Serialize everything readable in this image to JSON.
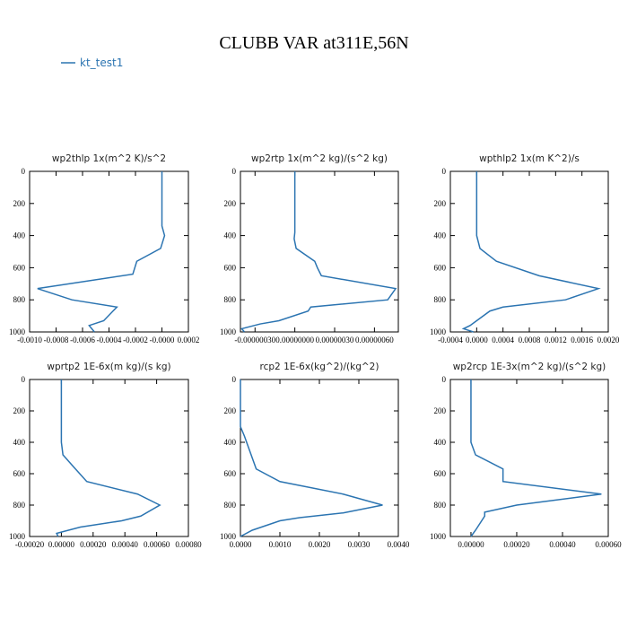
{
  "title": "CLUBB VAR at311E,56N",
  "legend": {
    "label": "kt_test1",
    "color": "#2b74b1"
  },
  "chart_data": [
    {
      "type": "line",
      "title": "wp2thlp   1x(m^2 K)/s^2",
      "xlim": [
        -0.001,
        0.0002
      ],
      "xticks": [
        {
          "value": -0.001,
          "label": "-0.0010"
        },
        {
          "value": -0.0008,
          "label": "-0.0008"
        },
        {
          "value": -0.0006,
          "label": "-0.0006"
        },
        {
          "value": -0.0004,
          "label": "-0.0004"
        },
        {
          "value": -0.0002,
          "label": "-0.0002"
        },
        {
          "value": 0,
          "label": "-0.0000"
        },
        {
          "value": 0.0002,
          "label": "0.0002"
        }
      ],
      "ylim": [
        1000,
        0
      ],
      "yticks": [
        0,
        200,
        400,
        600,
        800,
        1000
      ],
      "series": [
        {
          "color": "#2b74b1",
          "x": [
            0,
            0,
            2e-05,
            -1e-05,
            -0.00019,
            -0.00022,
            -0.00094,
            -0.00068,
            -0.00034,
            -0.00037,
            -0.00044,
            -0.00055,
            -0.00051
          ],
          "y": [
            0,
            340,
            400,
            480,
            560,
            640,
            730,
            800,
            845,
            870,
            930,
            960,
            1000
          ]
        }
      ]
    },
    {
      "type": "line",
      "title": "wp2rtp   1x(m^2 kg)/(s^2 kg)",
      "xlim": [
        -4.1e-07,
        7.8e-07
      ],
      "xticks": [
        {
          "value": -3e-07,
          "label": "-0.00000030"
        },
        {
          "value": 0,
          "label": "0.00000000"
        },
        {
          "value": 3e-07,
          "label": "0.00000030"
        },
        {
          "value": 6e-07,
          "label": "0.00000060"
        }
      ],
      "ylim": [
        1000,
        0
      ],
      "yticks": [
        0,
        200,
        400,
        600,
        800,
        1000
      ],
      "series": [
        {
          "color": "#2b74b1",
          "x": [
            0,
            0,
            -5e-09,
            1e-08,
            1.5e-07,
            1.7e-07,
            2e-07,
            7.6e-07,
            7e-07,
            1.2e-07,
            1e-07,
            -1.2e-07,
            -2.6e-07,
            -4e-07,
            -3.8e-07
          ],
          "y": [
            0,
            380,
            420,
            480,
            560,
            600,
            650,
            730,
            800,
            845,
            870,
            930,
            950,
            980,
            1000
          ]
        }
      ]
    },
    {
      "type": "line",
      "title": "wpthlp2   1x(m K^2)/s",
      "xlim": [
        -0.0004,
        0.002
      ],
      "xticks": [
        {
          "value": -0.0004,
          "label": "-0.0004"
        },
        {
          "value": 0,
          "label": "0.0000"
        },
        {
          "value": 0.0004,
          "label": "0.0004"
        },
        {
          "value": 0.0008,
          "label": "0.0008"
        },
        {
          "value": 0.0012,
          "label": "0.0012"
        },
        {
          "value": 0.0016,
          "label": "0.0016"
        },
        {
          "value": 0.002,
          "label": "0.0020"
        }
      ],
      "ylim": [
        1000,
        0
      ],
      "yticks": [
        0,
        200,
        400,
        600,
        800,
        1000
      ],
      "series": [
        {
          "color": "#2b74b1",
          "x": [
            0,
            0,
            5e-05,
            0.0003,
            0.00095,
            0.00185,
            0.00135,
            0.0004,
            0.0002,
            -0.0001,
            -0.0002,
            -5e-05
          ],
          "y": [
            0,
            400,
            480,
            560,
            650,
            730,
            800,
            845,
            870,
            960,
            980,
            1000
          ]
        }
      ]
    },
    {
      "type": "line",
      "title": "wprtp2   1E-6x(m kg)/(s kg)",
      "xlim": [
        -0.0002,
        0.0008
      ],
      "xticks": [
        {
          "value": -0.0002,
          "label": "-0.00020"
        },
        {
          "value": 0,
          "label": "0.00000"
        },
        {
          "value": 0.0002,
          "label": "0.00020"
        },
        {
          "value": 0.0004,
          "label": "0.00040"
        },
        {
          "value": 0.0006,
          "label": "0.00060"
        },
        {
          "value": 0.0008,
          "label": "0.00080"
        }
      ],
      "ylim": [
        1000,
        0
      ],
      "yticks": [
        0,
        200,
        400,
        600,
        800,
        1000
      ],
      "series": [
        {
          "color": "#2b74b1",
          "x": [
            0,
            0,
            1e-05,
            8e-05,
            0.00016,
            0.00048,
            0.00062,
            0.0005,
            0.00038,
            0.00012,
            -3e-05,
            -2e-05
          ],
          "y": [
            0,
            400,
            480,
            560,
            650,
            730,
            800,
            870,
            900,
            940,
            980,
            1000
          ]
        }
      ]
    },
    {
      "type": "line",
      "title": "rcp2   1E-6x(kg^2)/(kg^2)",
      "xlim": [
        0,
        0.004
      ],
      "xticks": [
        {
          "value": 0,
          "label": "0.0000"
        },
        {
          "value": 0.001,
          "label": "0.0010"
        },
        {
          "value": 0.002,
          "label": "0.0020"
        },
        {
          "value": 0.003,
          "label": "0.0030"
        },
        {
          "value": 0.004,
          "label": "0.0040"
        }
      ],
      "ylim": [
        1000,
        0
      ],
      "yticks": [
        0,
        200,
        400,
        600,
        800,
        1000
      ],
      "series": [
        {
          "color": "#2b74b1",
          "x": [
            0,
            0,
            0.0001,
            0.0004,
            0.001,
            0.0026,
            0.0036,
            0.0026,
            0.0015,
            0.001,
            0.0003,
            0
          ],
          "y": [
            0,
            300,
            360,
            570,
            650,
            730,
            800,
            850,
            880,
            900,
            960,
            1000
          ]
        }
      ]
    },
    {
      "type": "line",
      "title": "wp2rcp   1E-3x(m^2 kg)/(s^2 kg)",
      "xlim": [
        -9e-05,
        0.0006
      ],
      "xticks": [
        {
          "value": 0,
          "label": "0.00000"
        },
        {
          "value": 0.0002,
          "label": "0.00020"
        },
        {
          "value": 0.0004,
          "label": "0.00040"
        },
        {
          "value": 0.0006,
          "label": "0.00060"
        }
      ],
      "ylim": [
        1000,
        0
      ],
      "yticks": [
        0,
        200,
        400,
        600,
        800,
        1000
      ],
      "series": [
        {
          "color": "#2b74b1",
          "x": [
            0,
            0,
            2e-05,
            0.00014,
            0.00014,
            0.00057,
            0.0002,
            6e-05,
            6e-05,
            2e-05,
            0
          ],
          "y": [
            0,
            400,
            480,
            570,
            650,
            730,
            800,
            845,
            870,
            960,
            1000
          ]
        }
      ]
    }
  ]
}
